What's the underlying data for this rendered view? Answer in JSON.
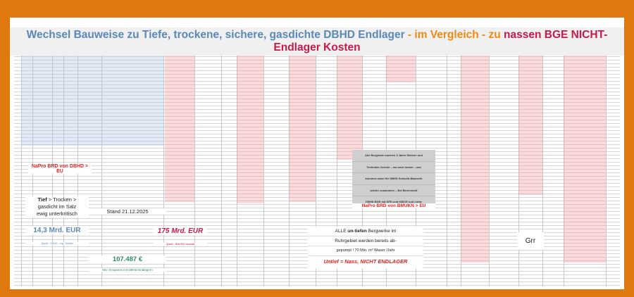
{
  "title": {
    "part1": "Wechsel Bauweise zu Tiefe, trockene, sichere, gasdichte DBHD Endlager",
    "part2": " - im Vergleich - zu ",
    "part3": "nassen BGE NICHT-Endlager Kosten"
  },
  "colors": {
    "frame": "#e07810",
    "blue": "#5b88b8",
    "orange": "#f08a10",
    "crimson": "#c8194b",
    "green": "#2e8b6e",
    "red": "#e82020"
  },
  "left": {
    "napro_dbhd": "NaPro BRD von DBHD > EU",
    "tief_line1_bold": "Tief",
    "tief_line1_rest": " > Trocken >",
    "tief_line2": "gasdicht im Salz",
    "tief_line3": "ewig unterkritisch",
    "cost_dbhd": "14,3 Mrd. EUR",
    "source_dbhd": "Quelle : DBHD – Ing. Goebel"
  },
  "middle": {
    "stand": "Stand 21.12.2025",
    "savings": "107.487 €",
    "savings_caption": "Mio. Erspamis mit DBHD Endlagern",
    "cost_bge": "175 Mrd. EUR",
    "source_bge": "Quelle : BMUKN Haushalt"
  },
  "gray_note": [
    "Alle Bergleute machen 3 Jahre Meister und",
    "Techniker-Schule – wo auch immer - und",
    "kommen dann für DBHD Schacht-Bauwerk",
    "wieder zusammen – Bei Beverstedt",
    "DBHD BGE  mit SPD und KBICE und Linke"
  ],
  "napro_bmukn": "NaPro BRD von BMUKN > EU",
  "ruhr": {
    "line1_pre": "ALLE ",
    "line1_bold": "un-tiefen",
    "line1_post": " Bergwerke im",
    "line2": "Ruhrgebiet werden bereits ab-",
    "line3": "gepumpt ! 70 Mio. m³ Waser /Jahr",
    "conclusion": "Untief = Nass, NICHT ENDLAGER"
  },
  "grr": "Grr"
}
